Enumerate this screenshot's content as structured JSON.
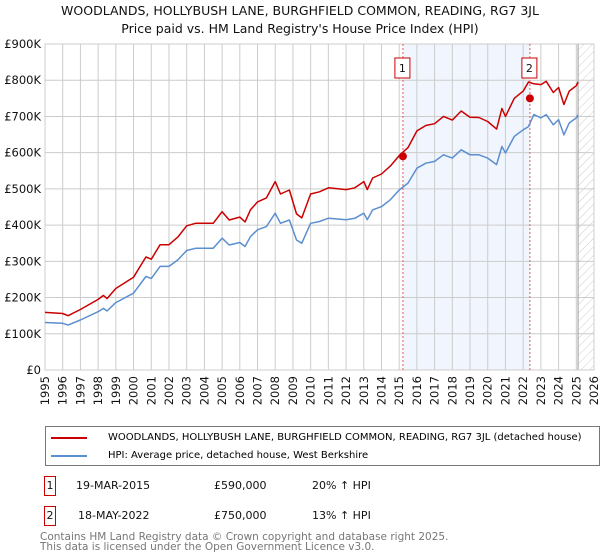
{
  "chart_data": {
    "type": "line",
    "title": "WOODLANDS, HOLLYBUSH LANE, BURGHFIELD COMMON, READING, RG7 3JL",
    "subtitle": "Price paid vs. HM Land Registry's House Price Index (HPI)",
    "xlim": [
      1995,
      2026
    ],
    "ylim": [
      0,
      900000
    ],
    "x_ticks": [
      "1995",
      "1996",
      "1997",
      "1998",
      "1999",
      "2000",
      "2001",
      "2002",
      "2003",
      "2004",
      "2005",
      "2006",
      "2007",
      "2008",
      "2009",
      "2010",
      "2011",
      "2012",
      "2013",
      "2014",
      "2015",
      "2016",
      "2017",
      "2018",
      "2019",
      "2020",
      "2021",
      "2022",
      "2023",
      "2024",
      "2025",
      "2026"
    ],
    "y_ticks": [
      {
        "v": 0,
        "label": "£0"
      },
      {
        "v": 100000,
        "label": "£100K"
      },
      {
        "v": 200000,
        "label": "£200K"
      },
      {
        "v": 300000,
        "label": "£300K"
      },
      {
        "v": 400000,
        "label": "£400K"
      },
      {
        "v": 500000,
        "label": "£500K"
      },
      {
        "v": 600000,
        "label": "£600K"
      },
      {
        "v": 700000,
        "label": "£700K"
      },
      {
        "v": 800000,
        "label": "£800K"
      },
      {
        "v": 900000,
        "label": "£900K"
      }
    ],
    "grid": true,
    "shaded_range": [
      2015.21,
      2022.38
    ],
    "forecast_hatch_from": 2025.1,
    "series": [
      {
        "name": "WOODLANDS, HOLLYBUSH LANE, BURGHFIELD COMMON, READING, RG7 3JL (detached house)",
        "color": "#cc0000",
        "x": [
          1995,
          1996,
          1996.3,
          1997,
          1998,
          1998.3,
          1998.5,
          1999,
          2000,
          2000.7,
          2001,
          2001.5,
          2002,
          2002.5,
          2003,
          2003.5,
          2004,
          2004.5,
          2005,
          2005.4,
          2006,
          2006.3,
          2006.6,
          2007,
          2007.5,
          2008,
          2008.3,
          2008.8,
          2009.2,
          2009.5,
          2010,
          2010.5,
          2011,
          2012,
          2012.5,
          2013,
          2013.2,
          2013.5,
          2014,
          2014.5,
          2015,
          2015.5,
          2016,
          2016.5,
          2017,
          2017.5,
          2018,
          2018.5,
          2019,
          2019.5,
          2020,
          2020.5,
          2020.8,
          2021,
          2021.5,
          2022,
          2022.3,
          2022.6,
          2023,
          2023.3,
          2023.7,
          2024,
          2024.3,
          2024.6,
          2025,
          2025.1
        ],
        "y": [
          159,
          156,
          150,
          167,
          195,
          206,
          197,
          225,
          256,
          312,
          306,
          346,
          346,
          367,
          398,
          405,
          405,
          405,
          437,
          414,
          422,
          409,
          442,
          464,
          475,
          520,
          486,
          497,
          431,
          420,
          486,
          492,
          503,
          498,
          503,
          520,
          498,
          530,
          541,
          563,
          592,
          614,
          660,
          675,
          680,
          700,
          690,
          715,
          698,
          697,
          686,
          665,
          722,
          700,
          750,
          770,
          795,
          790,
          788,
          797,
          766,
          780,
          733,
          770,
          785,
          795
        ]
      },
      {
        "name": "HPI: Average price, detached house, West Berkshire",
        "color": "#5b8fd0",
        "x": [
          1995,
          1996,
          1996.3,
          1997,
          1998,
          1998.3,
          1998.5,
          1999,
          2000,
          2000.7,
          2001,
          2001.5,
          2002,
          2002.5,
          2003,
          2003.5,
          2004,
          2004.5,
          2005,
          2005.4,
          2006,
          2006.3,
          2006.6,
          2007,
          2007.5,
          2008,
          2008.3,
          2008.8,
          2009.2,
          2009.5,
          2010,
          2010.5,
          2011,
          2012,
          2012.5,
          2013,
          2013.2,
          2013.5,
          2014,
          2014.5,
          2015,
          2015.5,
          2016,
          2016.5,
          2017,
          2017.5,
          2018,
          2018.5,
          2019,
          2019.5,
          2020,
          2020.5,
          2020.8,
          2021,
          2021.5,
          2022,
          2022.3,
          2022.6,
          2023,
          2023.3,
          2023.7,
          2024,
          2024.3,
          2024.6,
          2025,
          2025.1
        ],
        "y": [
          131,
          129,
          124,
          138,
          161,
          170,
          163,
          186,
          212,
          258,
          253,
          286,
          286,
          304,
          330,
          336,
          336,
          336,
          364,
          345,
          352,
          341,
          368,
          387,
          396,
          433,
          405,
          414,
          359,
          350,
          405,
          410,
          419,
          415,
          419,
          433,
          415,
          442,
          451,
          470,
          497,
          516,
          557,
          571,
          576,
          594,
          585,
          608,
          594,
          594,
          585,
          567,
          617,
          599,
          645,
          663,
          672,
          705,
          696,
          705,
          677,
          691,
          649,
          682,
          696,
          705
        ]
      }
    ],
    "y_unit_note": "series y values in £ thousands",
    "sales": [
      {
        "num": "1",
        "x": 2015.21,
        "value": 590000,
        "date": "19-MAR-2015",
        "price": "£590,000",
        "hpi": "20% ↑ HPI"
      },
      {
        "num": "2",
        "x": 2022.38,
        "value": 750000,
        "date": "18-MAY-2022",
        "price": "£750,000",
        "hpi": "13% ↑ HPI"
      }
    ]
  },
  "legend": {
    "red": "WOODLANDS, HOLLYBUSH LANE, BURGHFIELD COMMON, READING, RG7 3JL (detached house)",
    "blue": "HPI: Average price, detached house, West Berkshire"
  },
  "footer": {
    "line1": "Contains HM Land Registry data © Crown copyright and database right 2025.",
    "line2": "This data is licensed under the Open Government Licence v3.0."
  }
}
